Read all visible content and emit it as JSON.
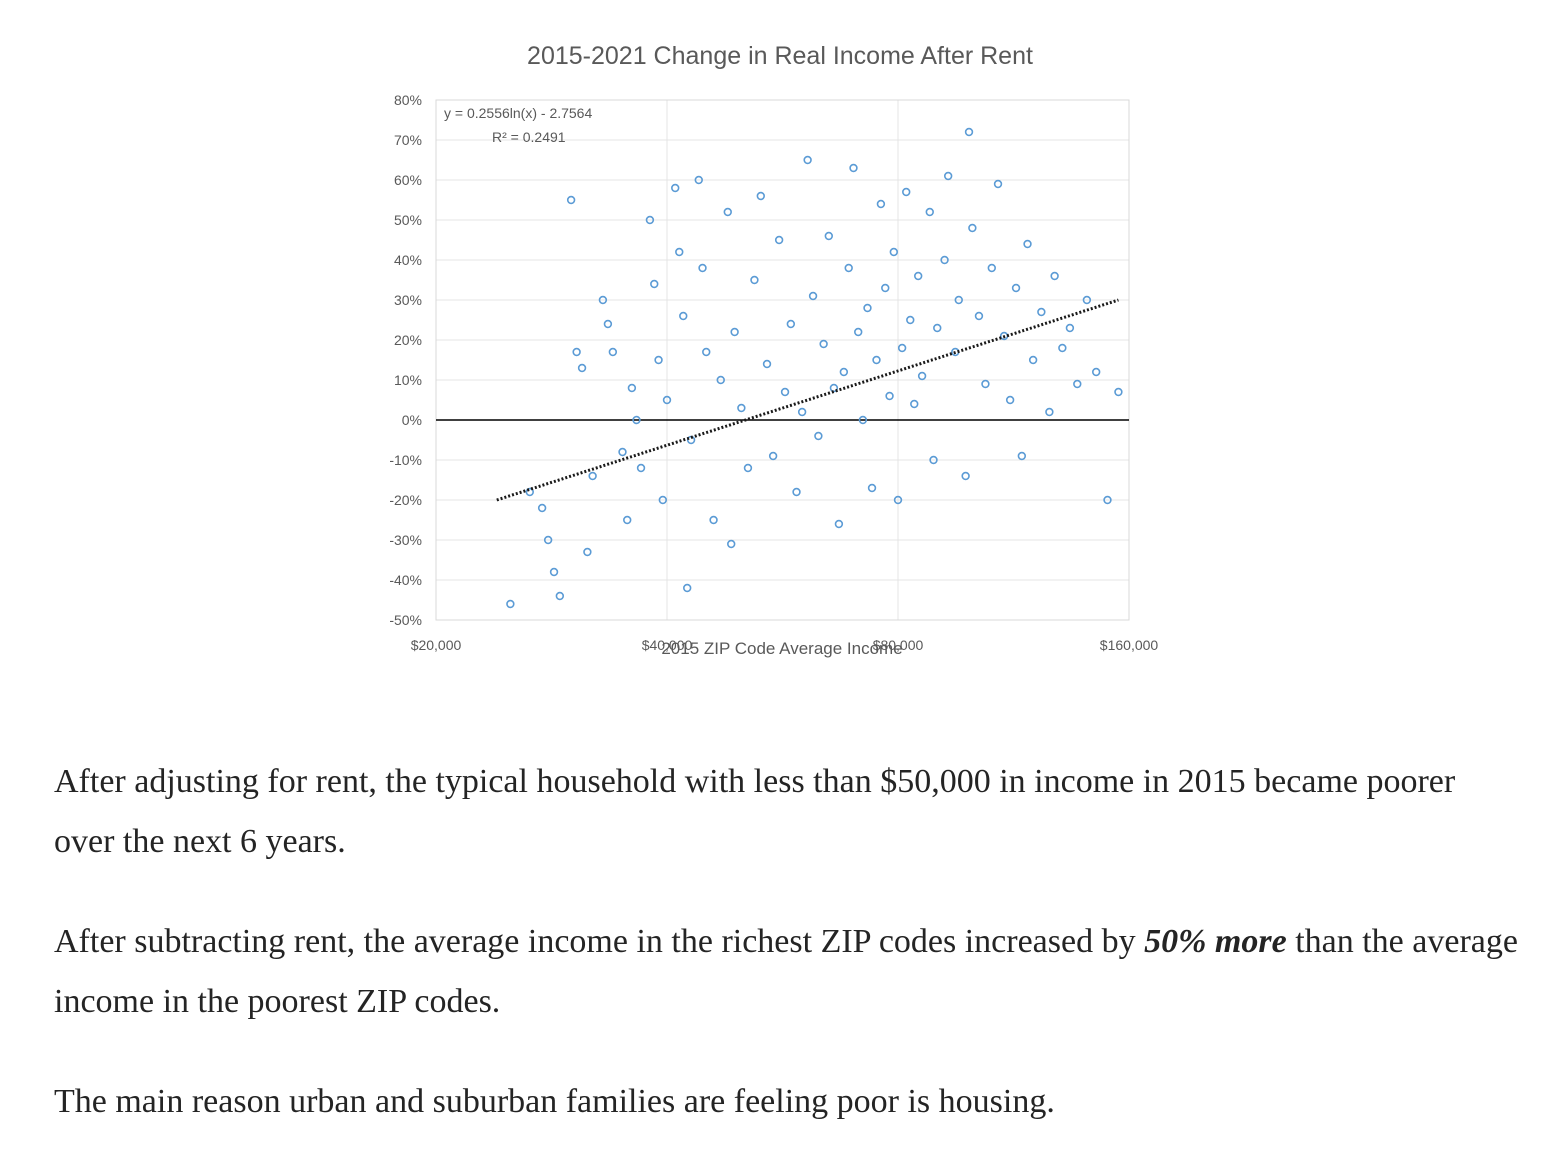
{
  "chart_data": {
    "type": "scatter",
    "title": "2015-2021 Change in Real Income After Rent",
    "xlabel": "2015 ZIP Code Average Income",
    "ylabel": "",
    "xscale": "log",
    "xlim": [
      20000,
      160000
    ],
    "ylim": [
      -50,
      80
    ],
    "x_ticks": [
      20000,
      40000,
      80000,
      160000
    ],
    "x_tick_labels": [
      "$20,000",
      "$40,000",
      "$80,000",
      "$160,000"
    ],
    "y_ticks": [
      80,
      70,
      60,
      50,
      40,
      30,
      20,
      10,
      0,
      -10,
      -20,
      -30,
      -40,
      -50
    ],
    "y_tick_labels": [
      "80%",
      "70%",
      "60%",
      "50%",
      "40%",
      "30%",
      "20%",
      "10%",
      "0%",
      "-10%",
      "-20%",
      "-30%",
      "-40%",
      "-50%"
    ],
    "trendline": {
      "type": "logarithmic",
      "equation": "y = 0.2556ln(x) - 2.7564",
      "r_squared": "R² = 0.2491",
      "x_range": [
        24000,
        155000
      ],
      "y_range": [
        -20,
        30
      ]
    },
    "zero_line": 0,
    "marker_color": "#5b9bd5",
    "series": [
      {
        "name": "ZIP codes",
        "points": [
          [
            25000,
            -46
          ],
          [
            26500,
            -18
          ],
          [
            27500,
            -22
          ],
          [
            28000,
            -30
          ],
          [
            28500,
            -38
          ],
          [
            29000,
            -44
          ],
          [
            30000,
            55
          ],
          [
            30500,
            17
          ],
          [
            31000,
            13
          ],
          [
            31500,
            -33
          ],
          [
            32000,
            -14
          ],
          [
            33000,
            30
          ],
          [
            33500,
            24
          ],
          [
            34000,
            17
          ],
          [
            35000,
            -8
          ],
          [
            35500,
            -25
          ],
          [
            36000,
            8
          ],
          [
            36500,
            0
          ],
          [
            37000,
            -12
          ],
          [
            38000,
            50
          ],
          [
            38500,
            34
          ],
          [
            39000,
            15
          ],
          [
            39500,
            -20
          ],
          [
            40000,
            5
          ],
          [
            41000,
            58
          ],
          [
            41500,
            42
          ],
          [
            42000,
            26
          ],
          [
            42500,
            -42
          ],
          [
            43000,
            -5
          ],
          [
            44000,
            60
          ],
          [
            44500,
            38
          ],
          [
            45000,
            17
          ],
          [
            46000,
            -25
          ],
          [
            47000,
            10
          ],
          [
            48000,
            52
          ],
          [
            48500,
            -31
          ],
          [
            49000,
            22
          ],
          [
            50000,
            3
          ],
          [
            51000,
            -12
          ],
          [
            52000,
            35
          ],
          [
            53000,
            56
          ],
          [
            54000,
            14
          ],
          [
            55000,
            -9
          ],
          [
            56000,
            45
          ],
          [
            57000,
            7
          ],
          [
            58000,
            24
          ],
          [
            59000,
            -18
          ],
          [
            60000,
            2
          ],
          [
            61000,
            65
          ],
          [
            62000,
            31
          ],
          [
            63000,
            -4
          ],
          [
            64000,
            19
          ],
          [
            65000,
            46
          ],
          [
            66000,
            8
          ],
          [
            67000,
            -26
          ],
          [
            68000,
            12
          ],
          [
            69000,
            38
          ],
          [
            70000,
            63
          ],
          [
            71000,
            22
          ],
          [
            72000,
            0
          ],
          [
            73000,
            28
          ],
          [
            74000,
            -17
          ],
          [
            75000,
            15
          ],
          [
            76000,
            54
          ],
          [
            77000,
            33
          ],
          [
            78000,
            6
          ],
          [
            79000,
            42
          ],
          [
            80000,
            -20
          ],
          [
            81000,
            18
          ],
          [
            82000,
            57
          ],
          [
            83000,
            25
          ],
          [
            84000,
            4
          ],
          [
            85000,
            36
          ],
          [
            86000,
            11
          ],
          [
            88000,
            52
          ],
          [
            89000,
            -10
          ],
          [
            90000,
            23
          ],
          [
            92000,
            40
          ],
          [
            93000,
            61
          ],
          [
            95000,
            17
          ],
          [
            96000,
            30
          ],
          [
            98000,
            -14
          ],
          [
            99000,
            72
          ],
          [
            100000,
            48
          ],
          [
            102000,
            26
          ],
          [
            104000,
            9
          ],
          [
            106000,
            38
          ],
          [
            108000,
            59
          ],
          [
            110000,
            21
          ],
          [
            112000,
            5
          ],
          [
            114000,
            33
          ],
          [
            116000,
            -9
          ],
          [
            118000,
            44
          ],
          [
            120000,
            15
          ],
          [
            123000,
            27
          ],
          [
            126000,
            2
          ],
          [
            128000,
            36
          ],
          [
            131000,
            18
          ],
          [
            134000,
            23
          ],
          [
            137000,
            9
          ],
          [
            141000,
            30
          ],
          [
            145000,
            12
          ],
          [
            150000,
            -20
          ],
          [
            155000,
            7
          ]
        ]
      }
    ]
  },
  "article": {
    "p1": "After adjusting for rent, the typical household with less than $50,000 in income in 2015 became poorer over the next 6 years.",
    "p2_before": "After subtracting rent, the average income in the richest ZIP codes increased by ",
    "p2_emph": "50% more",
    "p2_after": " than the average income in the poorest ZIP codes.",
    "p3": "The main reason urban and suburban families are feeling poor is housing."
  }
}
